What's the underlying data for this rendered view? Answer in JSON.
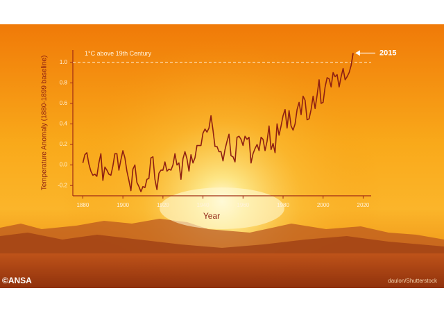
{
  "chart_data": {
    "type": "line",
    "x_label": "Year",
    "y_label": "Temperature Anomaly (1880-1899 baseline)",
    "xlim": [
      1875,
      2024
    ],
    "xticks": [
      1880,
      1900,
      1920,
      1940,
      1960,
      1980,
      2000,
      2020
    ],
    "ylim": [
      -0.3,
      1.12
    ],
    "yticks": [
      -0.2,
      {
        "value": 0,
        "label": "0.0"
      },
      0.2,
      0.4,
      0.6,
      0.8,
      {
        "value": 1,
        "label": "1.0"
      }
    ],
    "reference_line": {
      "value": 1,
      "label": "1°C above 19th Century"
    },
    "annotation": {
      "text": "2015",
      "x": 2015,
      "y": 1.09
    },
    "credits": [
      "©ANSA",
      "daulon/Shutterstock"
    ],
    "series": [
      {
        "color": "#8e1f12",
        "x": [
          1880,
          1881,
          1882,
          1883,
          1884,
          1885,
          1886,
          1887,
          1888,
          1889,
          1890,
          1891,
          1892,
          1893,
          1894,
          1895,
          1896,
          1897,
          1898,
          1899,
          1900,
          1901,
          1902,
          1903,
          1904,
          1905,
          1906,
          1907,
          1908,
          1909,
          1910,
          1911,
          1912,
          1913,
          1914,
          1915,
          1916,
          1917,
          1918,
          1919,
          1920,
          1921,
          1922,
          1923,
          1924,
          1925,
          1926,
          1927,
          1928,
          1929,
          1930,
          1931,
          1932,
          1933,
          1934,
          1935,
          1936,
          1937,
          1938,
          1939,
          1940,
          1941,
          1942,
          1943,
          1944,
          1945,
          1946,
          1947,
          1948,
          1949,
          1950,
          1951,
          1952,
          1953,
          1954,
          1955,
          1956,
          1957,
          1958,
          1959,
          1960,
          1961,
          1962,
          1963,
          1964,
          1965,
          1966,
          1967,
          1968,
          1969,
          1970,
          1971,
          1972,
          1973,
          1974,
          1975,
          1976,
          1977,
          1978,
          1979,
          1980,
          1981,
          1982,
          1983,
          1984,
          1985,
          1986,
          1987,
          1988,
          1989,
          1990,
          1991,
          1992,
          1993,
          1994,
          1995,
          1996,
          1997,
          1998,
          1999,
          2000,
          2001,
          2002,
          2003,
          2004,
          2005,
          2006,
          2007,
          2008,
          2009,
          2010,
          2011,
          2012,
          2013,
          2014,
          2015
        ],
        "values": [
          0.02,
          0.1,
          0.12,
          0.01,
          -0.06,
          -0.1,
          -0.09,
          -0.11,
          0.02,
          0.11,
          -0.15,
          -0.02,
          -0.05,
          -0.09,
          -0.1,
          -0.01,
          0.11,
          0.11,
          -0.05,
          0.05,
          0.14,
          0.07,
          -0.06,
          -0.15,
          -0.25,
          -0.04,
          0.0,
          -0.17,
          -0.21,
          -0.26,
          -0.21,
          -0.22,
          -0.14,
          -0.13,
          0.07,
          0.08,
          -0.14,
          -0.24,
          -0.08,
          -0.05,
          -0.05,
          0.03,
          -0.06,
          -0.04,
          -0.05,
          0.0,
          0.11,
          0.0,
          0.02,
          -0.14,
          0.06,
          0.13,
          0.06,
          -0.06,
          0.1,
          0.02,
          0.07,
          0.19,
          0.19,
          0.19,
          0.31,
          0.35,
          0.32,
          0.36,
          0.48,
          0.34,
          0.18,
          0.18,
          0.13,
          0.13,
          0.04,
          0.15,
          0.23,
          0.3,
          0.09,
          0.08,
          0.03,
          0.27,
          0.28,
          0.25,
          0.19,
          0.28,
          0.25,
          0.27,
          0.02,
          0.11,
          0.16,
          0.2,
          0.14,
          0.27,
          0.25,
          0.14,
          0.23,
          0.38,
          0.15,
          0.21,
          0.12,
          0.4,
          0.29,
          0.38,
          0.48,
          0.54,
          0.36,
          0.53,
          0.38,
          0.34,
          0.4,
          0.54,
          0.61,
          0.49,
          0.67,
          0.63,
          0.44,
          0.45,
          0.54,
          0.67,
          0.55,
          0.68,
          0.83,
          0.6,
          0.61,
          0.76,
          0.85,
          0.84,
          0.76,
          0.9,
          0.86,
          0.88,
          0.76,
          0.86,
          0.94,
          0.83,
          0.86,
          0.9,
          0.97,
          1.09
        ]
      }
    ]
  }
}
